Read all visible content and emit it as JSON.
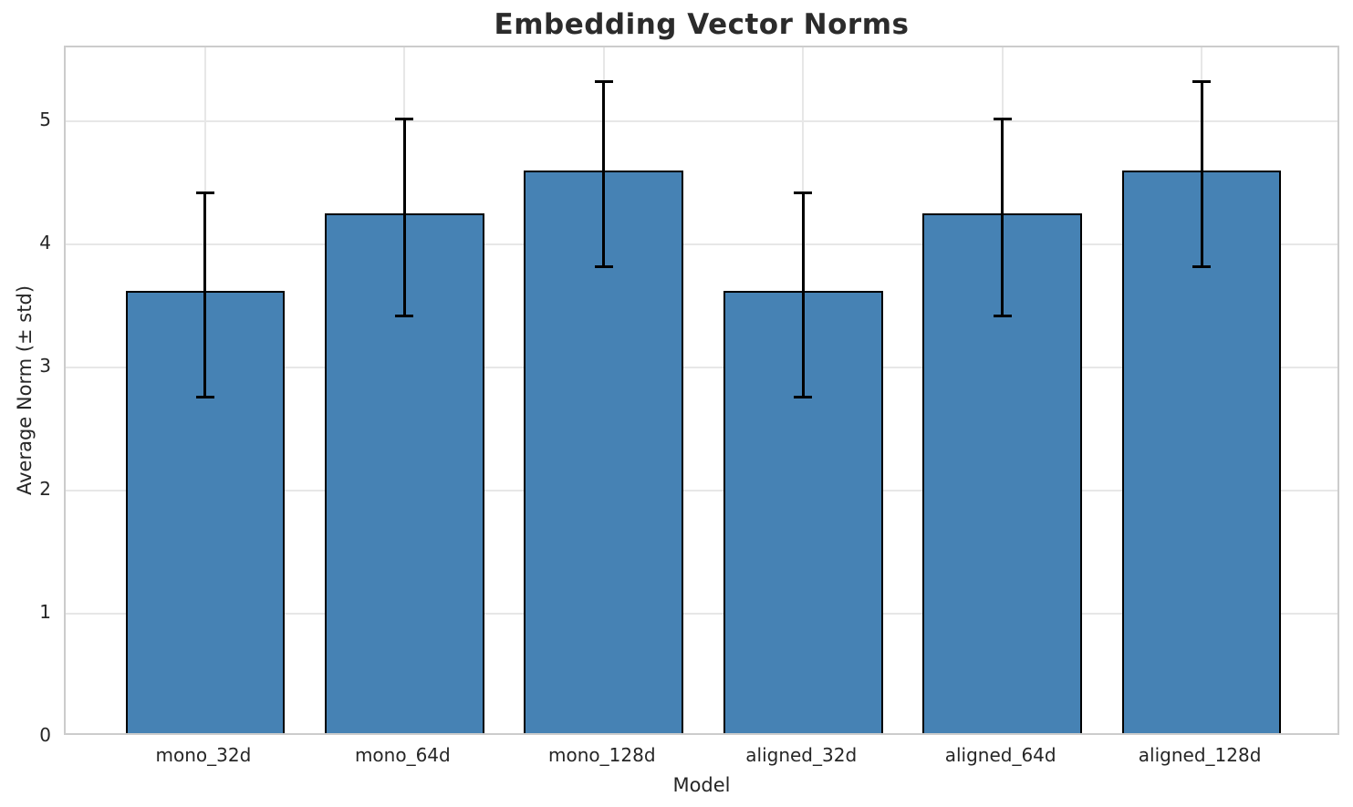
{
  "chart_data": {
    "type": "bar",
    "title": "Embedding Vector Norms",
    "xlabel": "Model",
    "ylabel": "Average Norm (± std)",
    "categories": [
      "mono_32d",
      "mono_64d",
      "mono_128d",
      "aligned_32d",
      "aligned_64d",
      "aligned_128d"
    ],
    "values": [
      3.59,
      4.22,
      4.57,
      3.59,
      4.22,
      4.57
    ],
    "errors": [
      0.83,
      0.8,
      0.75,
      0.83,
      0.8,
      0.75
    ],
    "ylim": [
      0,
      5.6
    ],
    "yticks": [
      0,
      1,
      2,
      3,
      4,
      5
    ],
    "grid": true,
    "legend": "none",
    "bar_color": "#4682b4",
    "bar_edge_color": "#000000",
    "error_color": "#000000",
    "grid_color": "#e7e7e7",
    "spine_color": "#cccccc",
    "tick_text_color": "#262626",
    "title_color": "#2b2b2b"
  }
}
